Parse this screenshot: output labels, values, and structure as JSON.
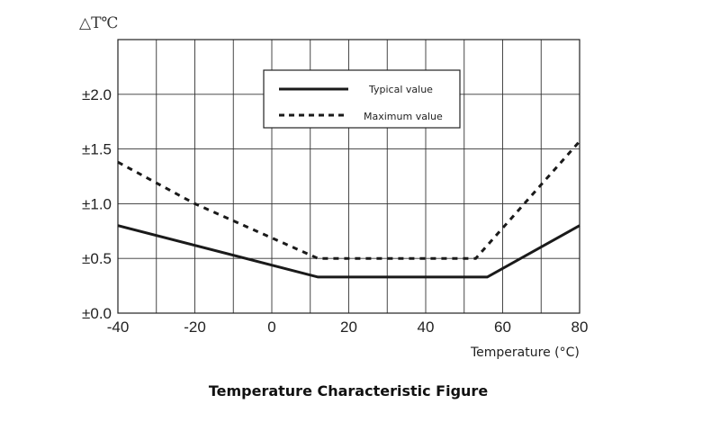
{
  "chart_data": {
    "type": "line",
    "title": "Temperature Characteristic Figure",
    "xlabel": "Temperature (°C)",
    "ylabel": "△T℃",
    "xlim": [
      -40,
      80
    ],
    "ylim": [
      0,
      2.5
    ],
    "xticks": [
      -40,
      -20,
      0,
      20,
      40,
      60,
      80
    ],
    "xtick_labels": [
      "-40",
      "-20",
      "0",
      "20",
      "40",
      "60",
      "80"
    ],
    "yticks": [
      0,
      0.5,
      1.0,
      1.5,
      2.0
    ],
    "ytick_labels": [
      "±0.0",
      "±0.5",
      "±1.0",
      "±1.5",
      "±2.0"
    ],
    "x_grid_step": 10,
    "grid": true,
    "legend_position": "top-center",
    "series": [
      {
        "name": "Typical value",
        "style": "solid",
        "color": "#1a1a1a",
        "x": [
          -40,
          12,
          56,
          80
        ],
        "y": [
          0.8,
          0.33,
          0.33,
          0.8
        ]
      },
      {
        "name": "Maximum value",
        "style": "dashed",
        "color": "#1a1a1a",
        "x": [
          -40,
          -20,
          12,
          53,
          80
        ],
        "y": [
          1.38,
          1.0,
          0.5,
          0.5,
          1.57
        ]
      }
    ]
  }
}
